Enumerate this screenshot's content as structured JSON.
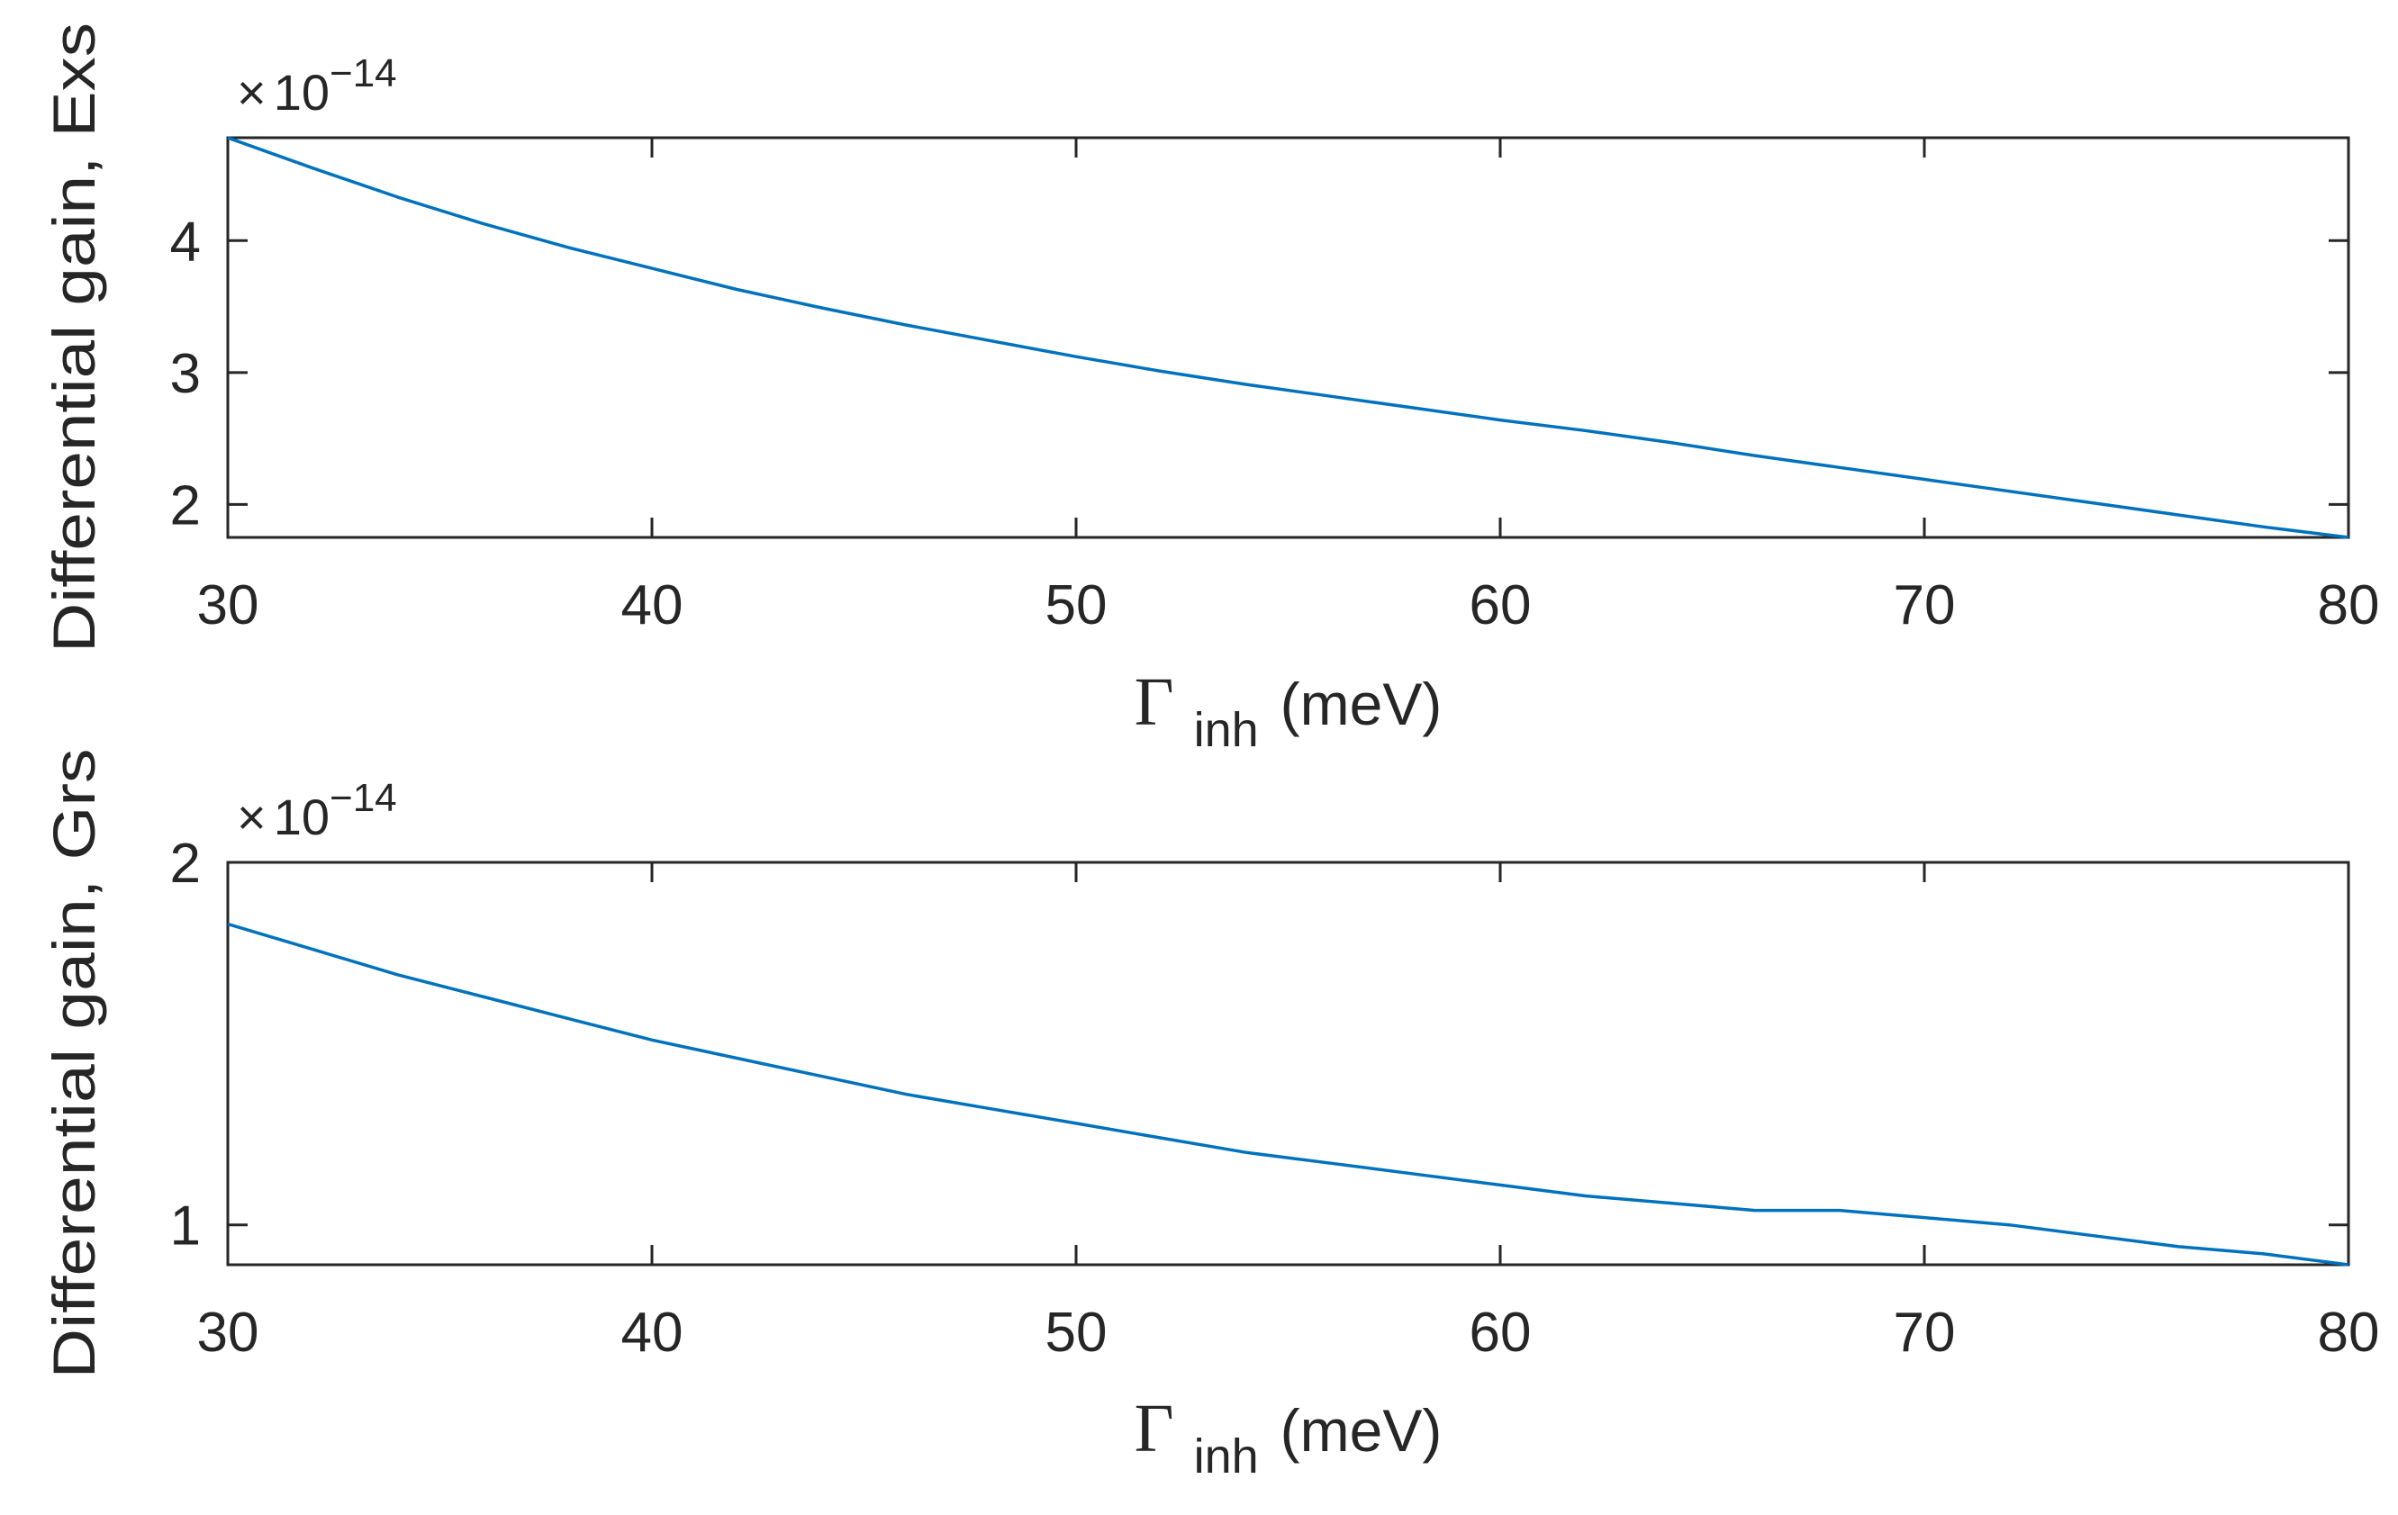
{
  "chart_data": [
    {
      "type": "line",
      "title": "",
      "xlabel": {
        "symbol": "Γ",
        "subscript": "inh",
        "suffix": "(meV)"
      },
      "ylabel": "Differential gain, Exs",
      "exponent_label": {
        "prefix": "×",
        "base": "10",
        "exponent": "−14"
      },
      "xlim": [
        30,
        80
      ],
      "ylim": [
        1.75,
        4.78
      ],
      "xticks": [
        30,
        40,
        50,
        60,
        70,
        80
      ],
      "xtick_labels": [
        "30",
        "40",
        "50",
        "60",
        "70",
        "80"
      ],
      "yticks": [
        2,
        3,
        4
      ],
      "ytick_labels": [
        "2",
        "3",
        "4"
      ],
      "grid": false,
      "color": "#0072BD",
      "series": [
        {
          "name": "Exs",
          "x": [
            30,
            32,
            34,
            36,
            38,
            40,
            42,
            44,
            46,
            48,
            50,
            52,
            54,
            56,
            58,
            60,
            62,
            64,
            66,
            68,
            70,
            72,
            74,
            76,
            78,
            80
          ],
          "values": [
            4.78,
            4.55,
            4.33,
            4.13,
            3.95,
            3.79,
            3.63,
            3.49,
            3.36,
            3.24,
            3.12,
            3.01,
            2.91,
            2.82,
            2.73,
            2.64,
            2.56,
            2.47,
            2.37,
            2.28,
            2.19,
            2.1,
            2.01,
            1.92,
            1.83,
            1.75
          ]
        }
      ]
    },
    {
      "type": "line",
      "title": "",
      "xlabel": {
        "symbol": "Γ",
        "subscript": "inh",
        "suffix": "(meV)"
      },
      "ylabel": "Differential gain, Grs",
      "exponent_label": {
        "prefix": "×",
        "base": "10",
        "exponent": "−14"
      },
      "xlim": [
        30,
        80
      ],
      "ylim": [
        0.89,
        2.0
      ],
      "xticks": [
        30,
        40,
        50,
        60,
        70,
        80
      ],
      "xtick_labels": [
        "30",
        "40",
        "50",
        "60",
        "70",
        "80"
      ],
      "yticks": [
        1,
        2
      ],
      "ytick_labels": [
        "1",
        "2"
      ],
      "grid": false,
      "color": "#0072BD",
      "series": [
        {
          "name": "Grs",
          "x": [
            30,
            32,
            34,
            36,
            38,
            40,
            42,
            44,
            46,
            48,
            50,
            52,
            54,
            56,
            58,
            60,
            62,
            64,
            66,
            68,
            70,
            72,
            74,
            76,
            78,
            80
          ],
          "values": [
            1.83,
            1.76,
            1.69,
            1.63,
            1.57,
            1.51,
            1.46,
            1.41,
            1.36,
            1.32,
            1.28,
            1.24,
            1.2,
            1.17,
            1.14,
            1.11,
            1.08,
            1.06,
            1.04,
            1.04,
            1.02,
            1.0,
            0.97,
            0.94,
            0.92,
            0.89
          ]
        }
      ]
    }
  ]
}
